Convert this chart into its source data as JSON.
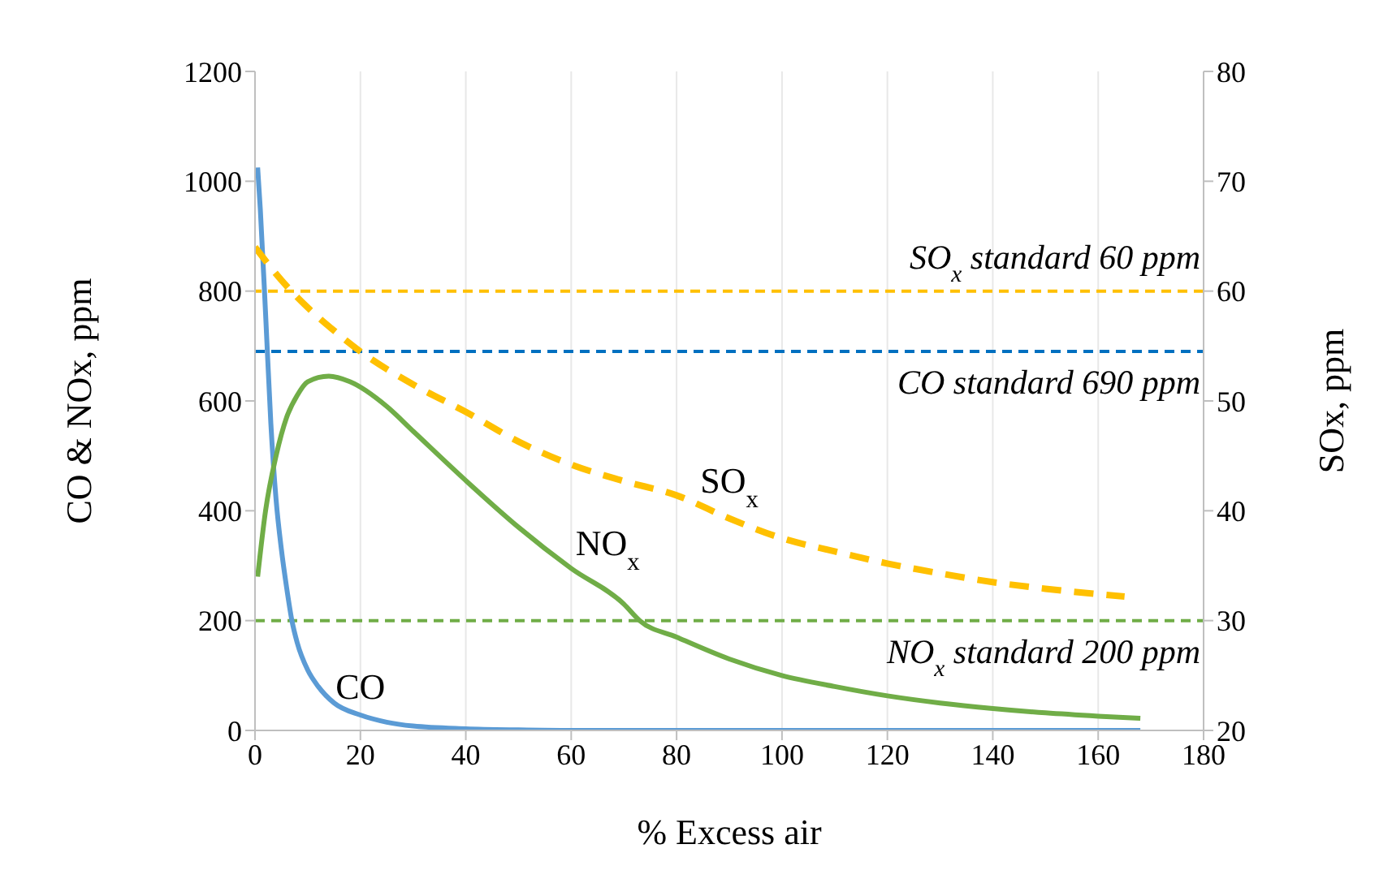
{
  "chart_data": {
    "type": "line",
    "xlabel": "% Excess air",
    "ylabel": "CO & NOx, ppm",
    "y2label": "SOx, ppm",
    "xlim": [
      0,
      180
    ],
    "xticks": [
      0,
      20,
      40,
      60,
      80,
      100,
      120,
      140,
      160,
      180
    ],
    "ylim": [
      0,
      1200
    ],
    "yticks": [
      0,
      200,
      400,
      600,
      800,
      1000,
      1200
    ],
    "y2lim": [
      20,
      80
    ],
    "y2ticks": [
      20,
      30,
      40,
      50,
      60,
      70,
      80
    ],
    "grid": true,
    "legend": false,
    "marker": "none",
    "series": [
      {
        "name": "CO",
        "color": "#5b9bd5",
        "line_style": "solid",
        "x": [
          0.5,
          1,
          2,
          3,
          4,
          5,
          6,
          7,
          8,
          10,
          12,
          15,
          20,
          25,
          30,
          40,
          50,
          60,
          80,
          100,
          120,
          140,
          168
        ],
        "values": [
          1025,
          950,
          760,
          560,
          420,
          330,
          260,
          200,
          160,
          110,
          80,
          50,
          28,
          15,
          8,
          3,
          1,
          0,
          0,
          0,
          0,
          0,
          0
        ]
      },
      {
        "name": "NO$_{x}$",
        "color": "#70ad47",
        "line_style": "solid",
        "x": [
          0.5,
          2,
          4,
          6,
          8,
          10,
          14,
          18,
          25,
          30,
          40,
          50,
          60,
          70,
          73,
          80,
          90,
          100,
          110,
          120,
          130,
          140,
          150,
          160,
          168
        ],
        "values": [
          280,
          400,
          500,
          570,
          610,
          635,
          645,
          635,
          590,
          545,
          455,
          370,
          295,
          230,
          200,
          170,
          130,
          100,
          80,
          63,
          50,
          40,
          32,
          26,
          22
        ]
      },
      {
        "name": "SO$_{x}$",
        "color": "#ffc000",
        "line_style": "dashed",
        "axis": "y2",
        "x": [
          0,
          5,
          10,
          15,
          20,
          30,
          40,
          50,
          60,
          70,
          80,
          90,
          100,
          110,
          120,
          130,
          140,
          150,
          165
        ],
        "values": [
          64,
          61,
          58.5,
          56.4,
          54.5,
          51.5,
          49,
          46.3,
          44.2,
          42.7,
          41.4,
          39.3,
          37.5,
          36.3,
          35.2,
          34.3,
          33.5,
          32.9,
          32.2
        ]
      }
    ],
    "ref_lines": [
      {
        "axis": "y2",
        "value": 60,
        "label": "SO$_{x}$ standard 60 ppm",
        "color": "#ffc000",
        "line_style": "dashed"
      },
      {
        "axis": "y",
        "value": 690,
        "label": "CO standard 690 ppm",
        "color": "#0070c0",
        "line_style": "dashed"
      },
      {
        "axis": "y",
        "value": 200,
        "label": "NO$_{x}$ standard 200 ppm",
        "color": "#70ad47",
        "line_style": "dashed"
      }
    ]
  }
}
